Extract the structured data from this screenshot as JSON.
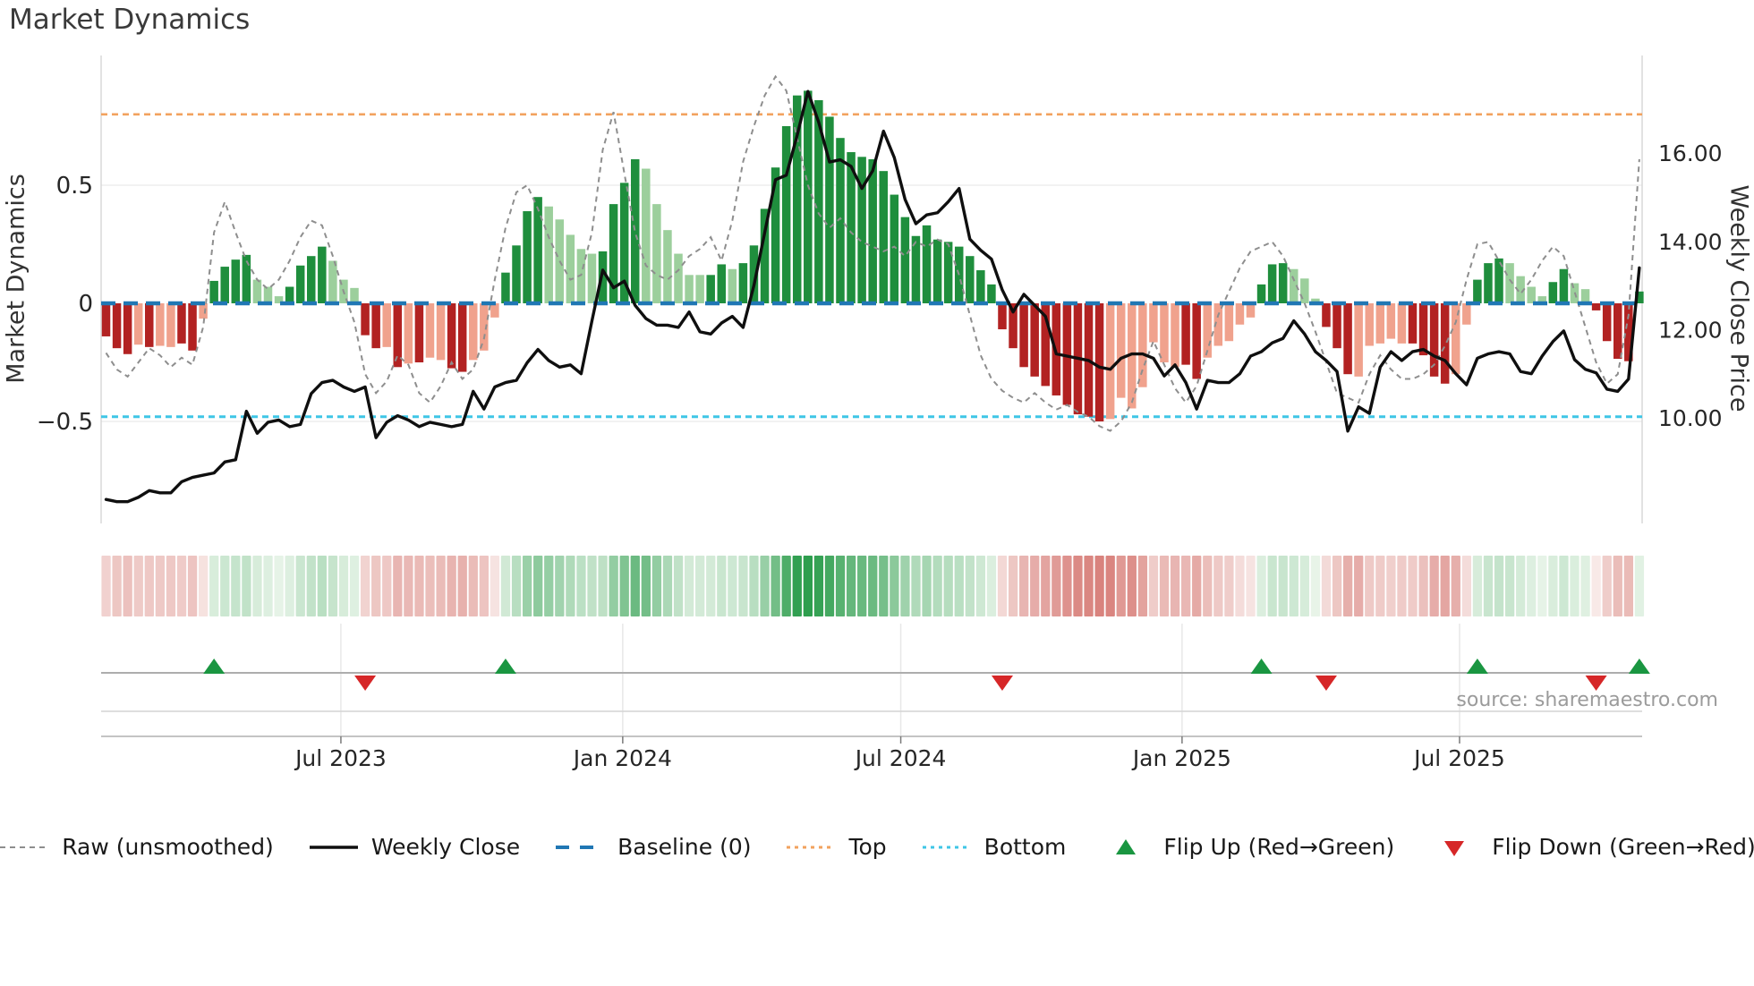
{
  "title": "Market Dynamics",
  "source": "source: sharemaestro.com",
  "left_axis": {
    "title": "Market Dynamics",
    "ticks": [
      0.5,
      0,
      -0.5
    ],
    "tick_labels": [
      "0.5",
      "0",
      "−0.5"
    ]
  },
  "right_axis": {
    "title": "Weekly Close Price",
    "ticks": [
      16,
      14,
      12,
      10
    ],
    "tick_labels": [
      "16.00",
      "14.00",
      "12.00",
      "10.00"
    ]
  },
  "x_axis": {
    "tick_labels": [
      "Jul 2023",
      "Jan 2024",
      "Jul 2024",
      "Jan 2025",
      "Jul 2025"
    ],
    "tick_weeks": [
      21.75,
      47.85,
      73.6,
      99.65,
      125.35
    ]
  },
  "legend": {
    "items": [
      {
        "label": "Raw (unsmoothed)",
        "swatch": "dashed-line",
        "color": "#8e8e8e"
      },
      {
        "label": "Weekly Close",
        "swatch": "solid-line",
        "color": "#0f0f0f"
      },
      {
        "label": "Baseline (0)",
        "swatch": "long-dash-line",
        "color": "#2077b4"
      },
      {
        "label": "Top",
        "swatch": "dotted-line",
        "color": "#f2a25e"
      },
      {
        "label": "Bottom",
        "swatch": "dotted-line",
        "color": "#3fc6e6"
      },
      {
        "label": "Flip Up (Red→Green)",
        "swatch": "triangle-up",
        "color": "#1a9641"
      },
      {
        "label": "Flip Down (Green→Red)",
        "swatch": "triangle-down",
        "color": "#d62728"
      }
    ]
  },
  "chart_data": {
    "type": "bar",
    "description": "Weekly oscillator bars (left axis) with raw unsmoothed dashed line, weekly close price line (right axis), heatmap strip of same oscillator values, and sign-flip markers. 143 weekly points, Feb 2023 - Oct 2025.",
    "weeks_count": 143,
    "baseline": 0,
    "top_line": 0.8,
    "bottom_line": -0.48,
    "osc_ylim": [
      -0.62,
      1.05
    ],
    "price_ylim": [
      7.9,
      18.3
    ],
    "grid": "light horizontal at left-axis ticks, light vertical at date ticks in lower panels",
    "legend_position": "bottom center",
    "osc": [
      -0.14,
      -0.19,
      -0.215,
      -0.175,
      -0.185,
      -0.18,
      -0.185,
      -0.17,
      -0.2,
      -0.065,
      0.095,
      0.155,
      0.185,
      0.205,
      0.1,
      0.07,
      0.03,
      0.07,
      0.16,
      0.2,
      0.24,
      0.18,
      0.1,
      0.065,
      -0.135,
      -0.19,
      -0.185,
      -0.27,
      -0.255,
      -0.25,
      -0.23,
      -0.24,
      -0.275,
      -0.29,
      -0.24,
      -0.2,
      -0.06,
      0.13,
      0.245,
      0.39,
      0.45,
      0.41,
      0.355,
      0.29,
      0.23,
      0.21,
      0.22,
      0.42,
      0.51,
      0.61,
      0.57,
      0.42,
      0.31,
      0.21,
      0.12,
      0.12,
      0.12,
      0.165,
      0.145,
      0.17,
      0.245,
      0.4,
      0.575,
      0.75,
      0.88,
      0.9,
      0.86,
      0.79,
      0.7,
      0.64,
      0.62,
      0.61,
      0.56,
      0.46,
      0.365,
      0.285,
      0.33,
      0.27,
      0.26,
      0.24,
      0.2,
      0.14,
      0.08,
      -0.11,
      -0.19,
      -0.27,
      -0.31,
      -0.35,
      -0.39,
      -0.43,
      -0.47,
      -0.48,
      -0.5,
      -0.49,
      -0.4,
      -0.445,
      -0.355,
      -0.165,
      -0.25,
      -0.27,
      -0.26,
      -0.32,
      -0.23,
      -0.18,
      -0.16,
      -0.09,
      -0.06,
      0.08,
      0.165,
      0.17,
      0.145,
      0.105,
      0.02,
      -0.1,
      -0.19,
      -0.3,
      -0.31,
      -0.18,
      -0.17,
      -0.15,
      -0.17,
      -0.17,
      -0.22,
      -0.31,
      -0.34,
      -0.3,
      -0.09,
      0.1,
      0.17,
      0.19,
      0.17,
      0.115,
      0.07,
      0.03,
      0.09,
      0.145,
      0.085,
      0.06,
      -0.03,
      -0.16,
      -0.235,
      -0.245,
      0.05
    ],
    "bar_shade_pattern": "dddldllddlddddlllddddlllddldldllddlllddddlllllddddllllllddlddddddddddddddddddddddddddddddddddlllllllddllllldddllldddlllllddddlldddllllddllddddd",
    "bar_shade_legend": {
      "d": "dark (saturated)",
      "l": "light (faded)"
    },
    "raw": [
      -0.21,
      -0.28,
      -0.31,
      -0.25,
      -0.19,
      -0.22,
      -0.27,
      -0.23,
      -0.26,
      -0.1,
      0.3,
      0.43,
      0.3,
      0.18,
      0.1,
      0.06,
      0.1,
      0.18,
      0.28,
      0.35,
      0.33,
      0.2,
      0.05,
      -0.08,
      -0.3,
      -0.38,
      -0.33,
      -0.22,
      -0.26,
      -0.38,
      -0.42,
      -0.35,
      -0.25,
      -0.32,
      -0.28,
      -0.15,
      0.1,
      0.32,
      0.47,
      0.5,
      0.4,
      0.28,
      0.18,
      0.1,
      0.12,
      0.3,
      0.65,
      0.81,
      0.55,
      0.3,
      0.16,
      0.12,
      0.1,
      0.14,
      0.2,
      0.23,
      0.28,
      0.18,
      0.35,
      0.6,
      0.75,
      0.88,
      0.96,
      0.9,
      0.7,
      0.5,
      0.38,
      0.32,
      0.36,
      0.3,
      0.26,
      0.24,
      0.22,
      0.24,
      0.2,
      0.26,
      0.24,
      0.27,
      0.25,
      0.12,
      -0.05,
      -0.22,
      -0.32,
      -0.37,
      -0.4,
      -0.42,
      -0.38,
      -0.42,
      -0.45,
      -0.43,
      -0.46,
      -0.48,
      -0.52,
      -0.54,
      -0.5,
      -0.42,
      -0.28,
      -0.16,
      -0.26,
      -0.36,
      -0.42,
      -0.35,
      -0.2,
      -0.05,
      0.05,
      0.15,
      0.22,
      0.24,
      0.26,
      0.2,
      0.1,
      0.0,
      -0.12,
      -0.25,
      -0.38,
      -0.4,
      -0.42,
      -0.3,
      -0.22,
      -0.28,
      -0.32,
      -0.32,
      -0.3,
      -0.26,
      -0.18,
      -0.08,
      0.1,
      0.25,
      0.26,
      0.18,
      0.1,
      0.04,
      0.1,
      0.18,
      0.24,
      0.2,
      0.05,
      -0.1,
      -0.25,
      -0.34,
      -0.3,
      -0.05,
      0.61
    ],
    "price": [
      8.15,
      8.1,
      8.1,
      8.2,
      8.35,
      8.3,
      8.3,
      8.55,
      8.65,
      8.7,
      8.75,
      9.0,
      9.05,
      10.15,
      9.65,
      9.9,
      9.95,
      9.8,
      9.85,
      10.55,
      10.8,
      10.85,
      10.7,
      10.6,
      10.7,
      9.55,
      9.9,
      10.05,
      9.95,
      9.8,
      9.9,
      9.85,
      9.8,
      9.85,
      10.6,
      10.2,
      10.7,
      10.8,
      10.85,
      11.25,
      11.55,
      11.3,
      11.15,
      11.2,
      11.0,
      12.2,
      13.35,
      12.95,
      13.1,
      12.55,
      12.25,
      12.1,
      12.1,
      12.05,
      12.4,
      11.95,
      11.9,
      12.15,
      12.3,
      12.05,
      13.0,
      14.2,
      15.4,
      15.5,
      16.4,
      17.4,
      16.7,
      15.8,
      15.85,
      15.7,
      15.2,
      15.6,
      16.5,
      15.9,
      14.95,
      14.4,
      14.6,
      14.65,
      14.9,
      15.2,
      14.05,
      13.8,
      13.6,
      12.9,
      12.4,
      12.8,
      12.55,
      12.3,
      11.45,
      11.4,
      11.35,
      11.3,
      11.15,
      11.1,
      11.35,
      11.45,
      11.45,
      11.35,
      10.95,
      11.2,
      10.8,
      10.2,
      10.85,
      10.8,
      10.8,
      11.0,
      11.4,
      11.5,
      11.7,
      11.8,
      12.2,
      11.9,
      11.5,
      11.3,
      11.05,
      9.7,
      10.25,
      10.1,
      11.15,
      11.5,
      11.3,
      11.5,
      11.55,
      11.4,
      11.3,
      11.0,
      10.75,
      11.35,
      11.45,
      11.5,
      11.45,
      11.05,
      11.0,
      11.4,
      11.73,
      11.97,
      11.32,
      11.1,
      11.02,
      10.65,
      10.6,
      10.88,
      13.4
    ],
    "flip_up_weeks": [
      10,
      37,
      107,
      127,
      142
    ],
    "flip_down_weeks": [
      24,
      83,
      113,
      138
    ],
    "colors": {
      "bar_dark_green": "#1f8e3d",
      "bar_light_green": "#9ccf9c",
      "bar_dark_red": "#b22222",
      "bar_light_red": "#f0a28d",
      "baseline_blue": "#2077b4",
      "top_orange": "#f2a25e",
      "bottom_cyan": "#3fc6e6",
      "raw_gray": "#8e8e8e",
      "price_black": "#0f0f0f",
      "flip_up_green": "#1a9641",
      "flip_down_red": "#d62728",
      "heat_pos_max": "#2e9e4e",
      "heat_pos_min": "#ecf6ec",
      "heat_neg_max": "#d9837e",
      "heat_neg_min": "#faf0ee"
    }
  }
}
